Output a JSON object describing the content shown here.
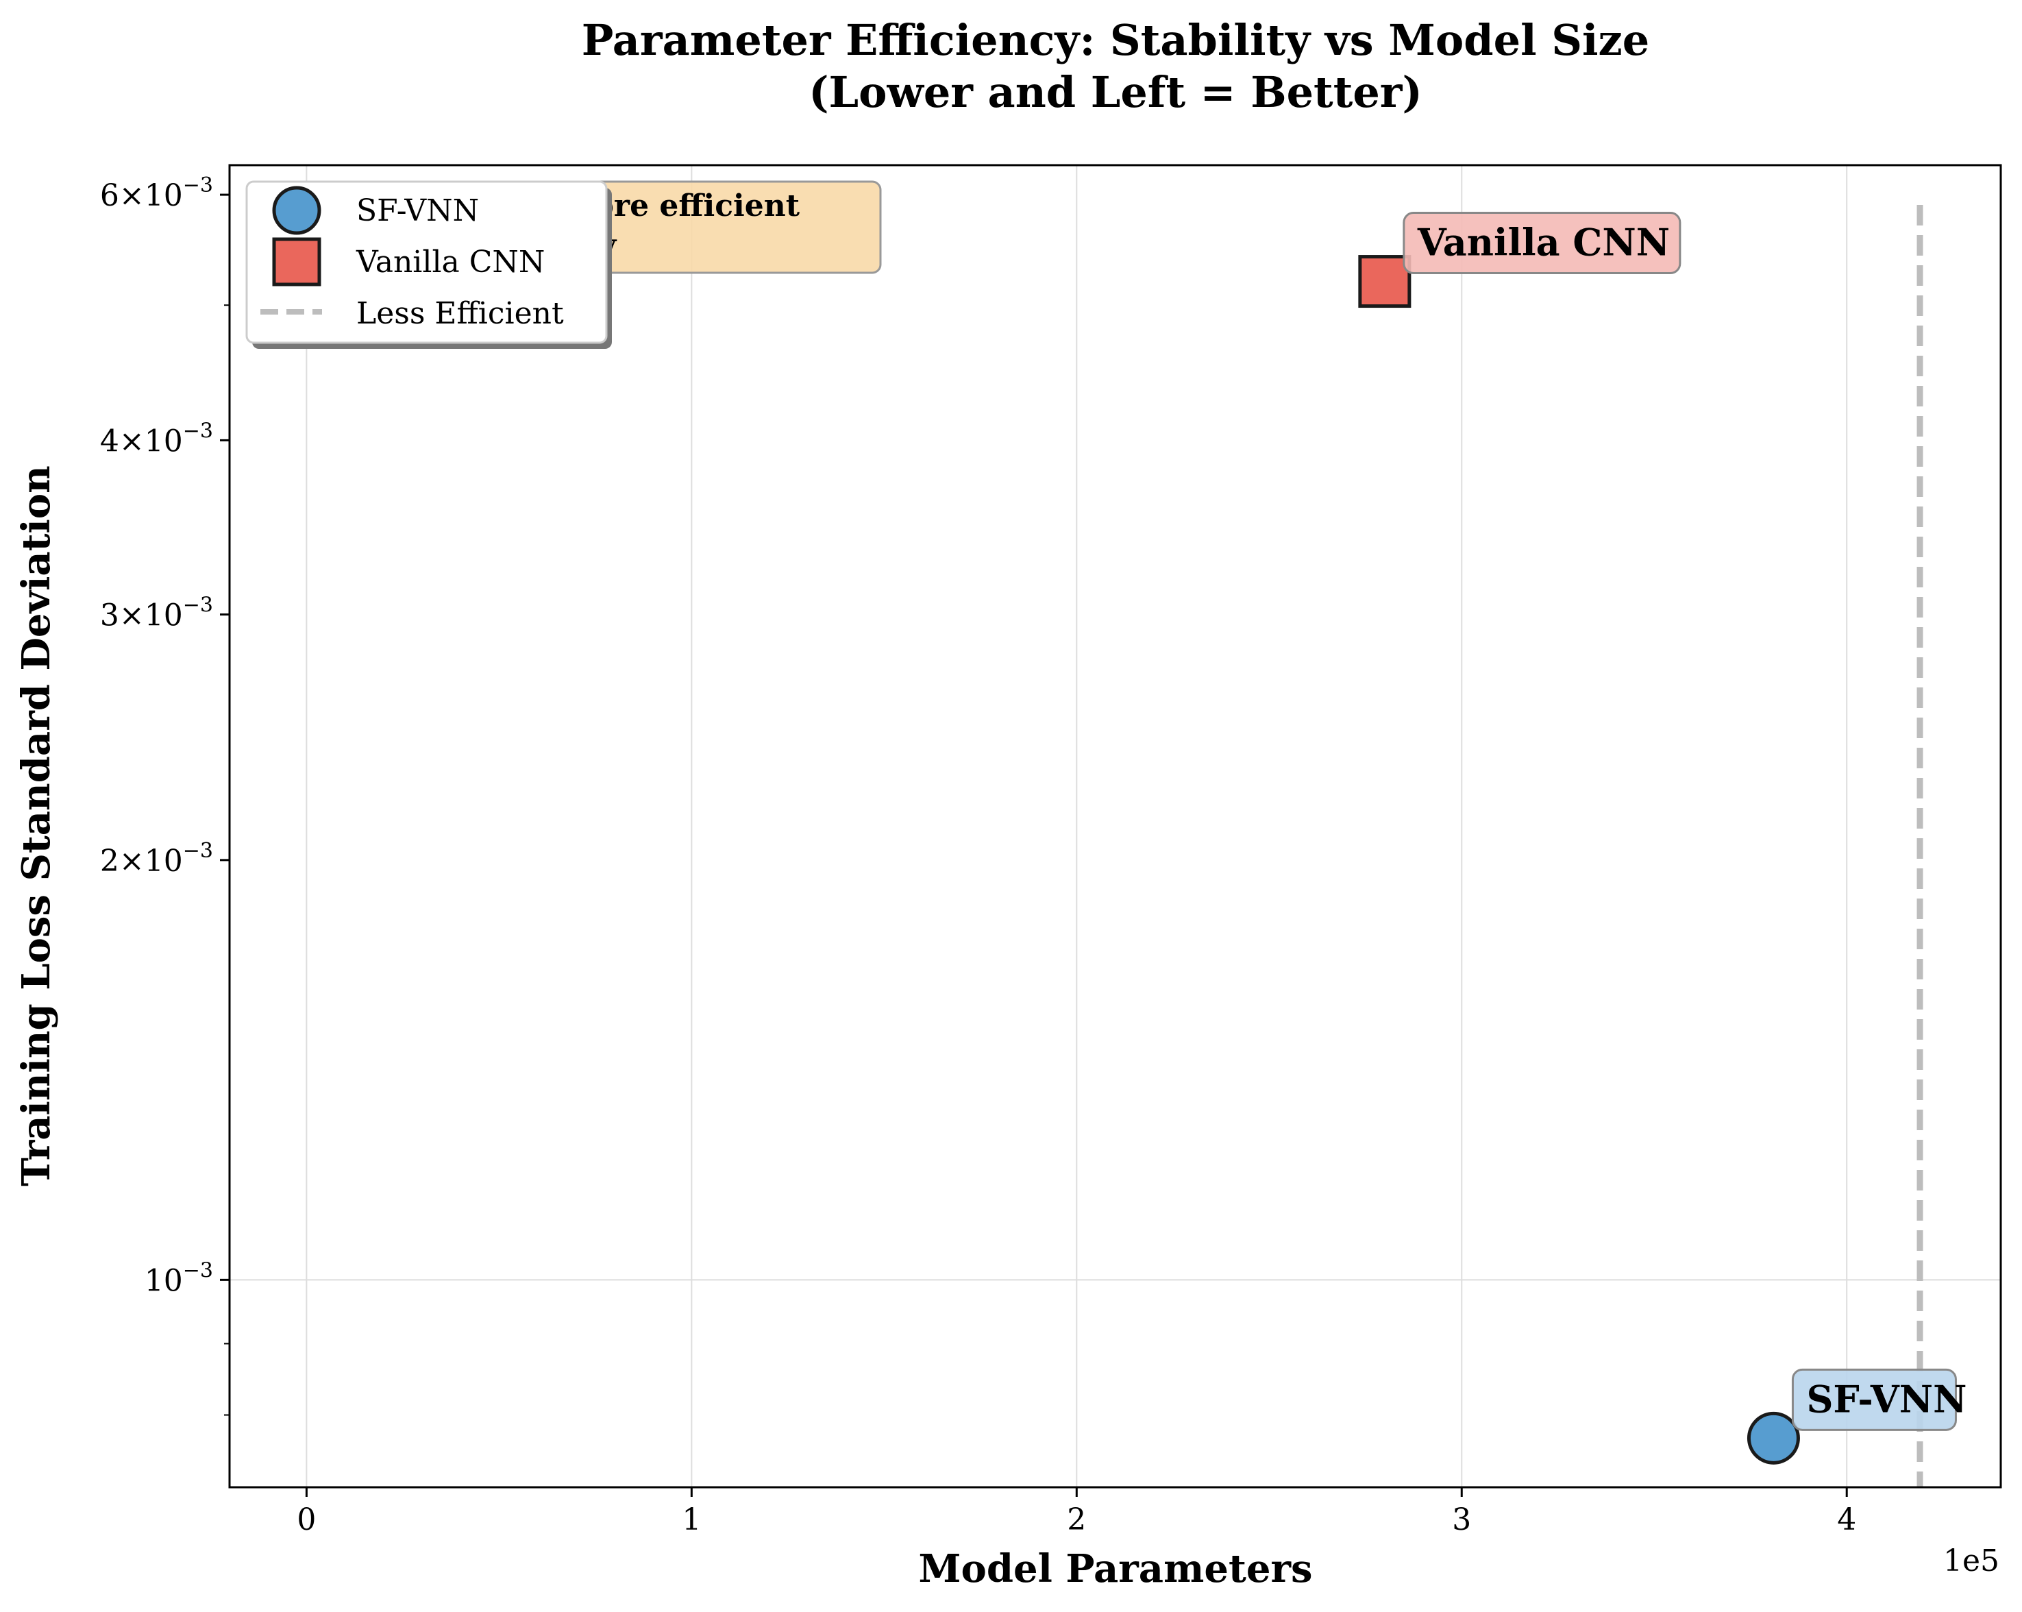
{
  "chart_data": {
    "type": "scatter",
    "title_line1": "Parameter Efficiency: Stability vs Model Size",
    "title_line2": "(Lower and Left = Better)",
    "xlabel": "Model Parameters",
    "ylabel": "Training Loss Standard Deviation",
    "x_offset_label": "1e5",
    "xlim": [
      -20000,
      440000
    ],
    "ylim": [
      0.00071,
      0.0063
    ],
    "yscale": "log",
    "grid": true,
    "x_ticks": [
      {
        "value": 0,
        "label": "0"
      },
      {
        "value": 100000,
        "label": "1"
      },
      {
        "value": 200000,
        "label": "2"
      },
      {
        "value": 300000,
        "label": "3"
      },
      {
        "value": 400000,
        "label": "4"
      }
    ],
    "y_ticks": [
      {
        "value": 0.001,
        "base": "10",
        "exp": "−3",
        "mult": ""
      },
      {
        "value": 0.002,
        "base": "10",
        "exp": "−3",
        "mult": "2×"
      },
      {
        "value": 0.003,
        "base": "10",
        "exp": "−3",
        "mult": "3×"
      },
      {
        "value": 0.004,
        "base": "10",
        "exp": "−3",
        "mult": "4×"
      },
      {
        "value": 0.006,
        "base": "10",
        "exp": "−3",
        "mult": "6×"
      }
    ],
    "y_minor_ticks": [
      0.0008,
      0.0009,
      0.005
    ],
    "series": [
      {
        "name": "SF-VNN",
        "marker": "circle",
        "color": "#3a8cc8",
        "x": 381000,
        "y": 0.00077,
        "label": "SF-VNN",
        "label_bg": "#b9d5ec"
      },
      {
        "name": "Vanilla CNN",
        "marker": "square",
        "color": "#e8564a",
        "x": 280000,
        "y": 0.0052,
        "label": "Vanilla CNN",
        "label_bg": "#f4bab6"
      }
    ],
    "reference_line": {
      "name": "Less Efficient",
      "x": 419000,
      "color": "#bdbdbd",
      "style": "dashed"
    },
    "note_box": {
      "line1": "more efficient",
      "line2": "lity",
      "bg": "#f8d9a8"
    },
    "legend_position": "upper-left"
  }
}
